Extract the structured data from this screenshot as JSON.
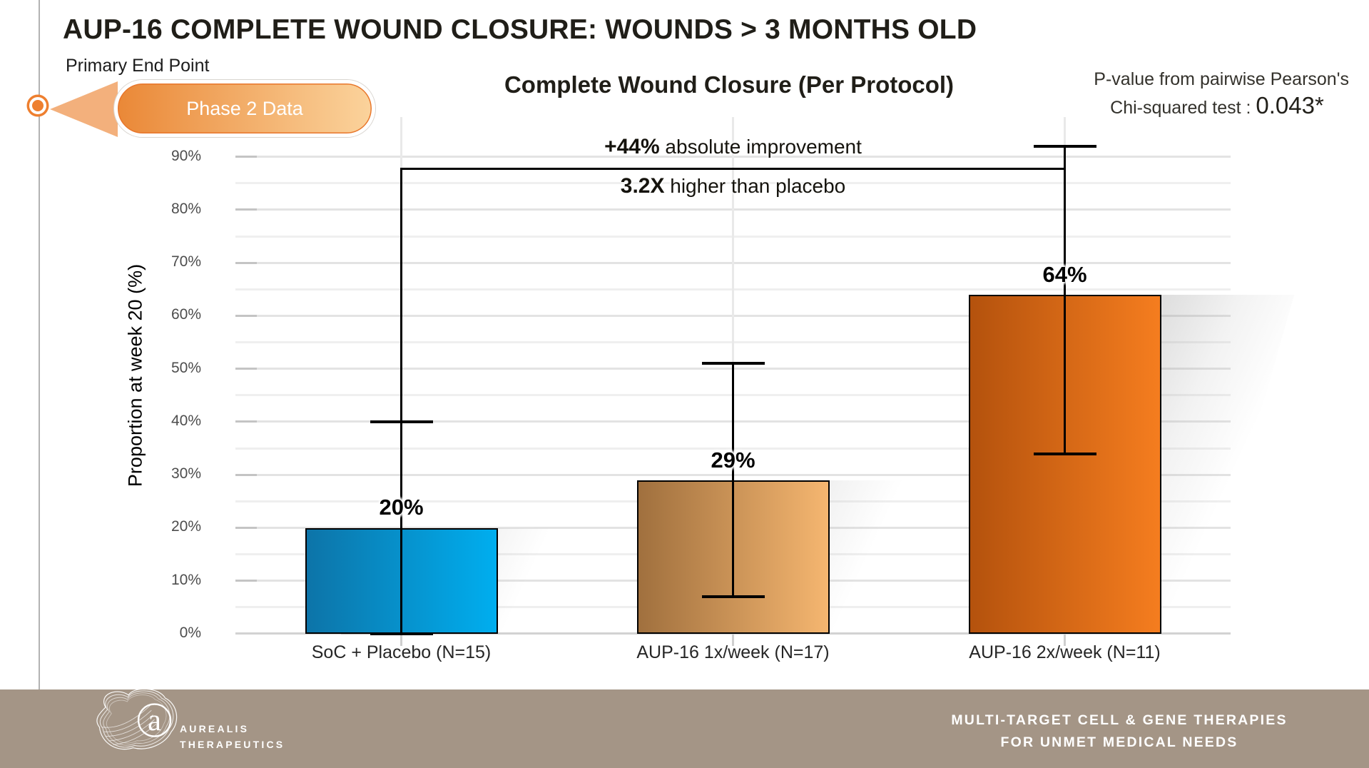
{
  "slide": {
    "title": "AUP-16 COMPLETE WOUND CLOSURE: WOUNDS > 3 MONTHS OLD",
    "subtitle": "Primary End Point",
    "badge_label": "Phase 2 Data"
  },
  "pvalue": {
    "line1": "P-value from pairwise Pearson's",
    "line2_label": "Chi-squared test : ",
    "line2_value": "0.043*"
  },
  "chart_data": {
    "type": "bar",
    "title": "Complete Wound Closure (Per Protocol)",
    "ylabel": "Proportion at week 20 (%)",
    "ylim": [
      0,
      97.5
    ],
    "ytick_values": [
      0,
      10,
      20,
      30,
      40,
      50,
      60,
      70,
      80,
      90
    ],
    "ytick_labels": [
      "0%",
      "10%",
      "20%",
      "30%",
      "40%",
      "50%",
      "60%",
      "70%",
      "80%",
      "90%"
    ],
    "ytick_minor_step": 5,
    "grid": true,
    "legend": "none",
    "categories": [
      "SoC + Placebo (N=15)",
      "AUP-16 1x/week (N=17)",
      "AUP-16 2x/week (N=11)"
    ],
    "values": [
      20,
      29,
      64
    ],
    "value_labels": [
      "20%",
      "29%",
      "64%"
    ],
    "error_low": [
      0,
      7,
      34
    ],
    "error_high": [
      40,
      51,
      92
    ],
    "bar_colors": [
      {
        "left": "#0d74a8",
        "right": "#00aeef"
      },
      {
        "left": "#a0703e",
        "right": "#f5b670"
      },
      {
        "left": "#b4520d",
        "right": "#f57d1f"
      }
    ],
    "annotation": {
      "bracket_from": 0,
      "bracket_to": 2,
      "bracket_level_pct": 88,
      "line1_bold": "+44%",
      "line1_rest": " absolute improvement",
      "line2_bold": "3.2X",
      "line2_rest": " higher than placebo"
    }
  },
  "footer": {
    "company": "AUREALIS",
    "company_sub": "THERAPEUTICS",
    "tagline_line1": "MULTI-TARGET CELL & GENE THERAPIES",
    "tagline_line2": "FOR UNMET MEDICAL NEEDS",
    "bar_color": "#a49586"
  },
  "colors": {
    "accent_orange": "#ee7f2f",
    "badge_gradient_left": "#ea8837",
    "badge_gradient_right": "#fbd39c",
    "callout_tail": "#f3b07c",
    "grid_major": "#e3e3e3",
    "grid_minor": "#efefef",
    "axis_baseline": "#d2d2d2"
  }
}
